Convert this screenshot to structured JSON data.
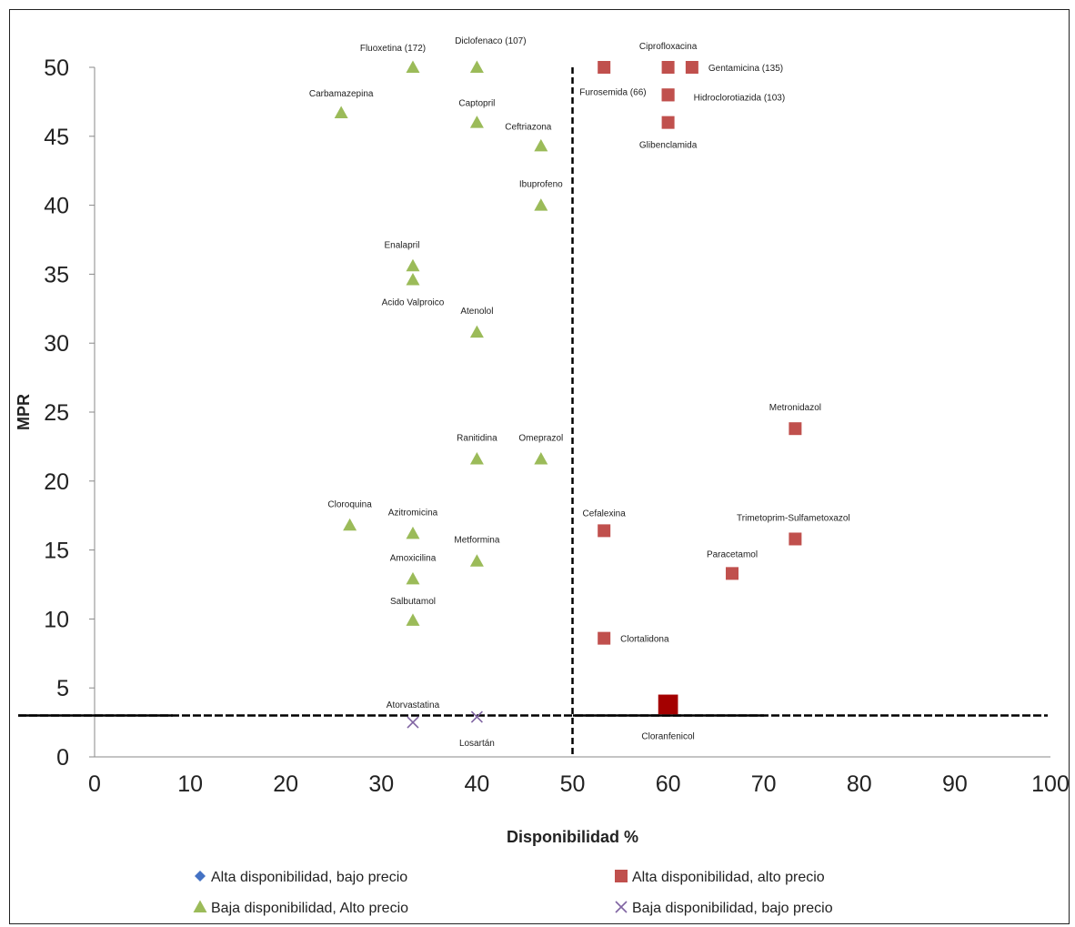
{
  "chart_data": {
    "type": "scatter",
    "title": "",
    "xlabel": "Disponibilidad %",
    "ylabel": "MPR",
    "xlim": [
      0,
      100
    ],
    "ylim": [
      0,
      50
    ],
    "x_ticks": [
      0,
      10,
      20,
      30,
      40,
      50,
      60,
      70,
      80,
      90,
      100
    ],
    "y_ticks": [
      0,
      5,
      10,
      15,
      20,
      25,
      30,
      35,
      40,
      45,
      50
    ],
    "grid": false,
    "reference_lines": {
      "x": 50,
      "y": 3
    },
    "legend_position": "bottom",
    "series": [
      {
        "name": "Alta disponibilidad, bajo precio",
        "marker": "diamond",
        "color": "#4472c4",
        "points": []
      },
      {
        "name": "Alta disponibilidad, alto precio",
        "marker": "square",
        "color": "#c0504d",
        "points": [
          {
            "label": "Ciprofloxacina",
            "x": 60,
            "y": 50
          },
          {
            "label": "",
            "x": 53.3,
            "y": 50
          },
          {
            "label": "Gentamicina (135)",
            "x": 62.5,
            "y": 50
          },
          {
            "label": "Furosemida (66)",
            "x": 60,
            "y": 48
          },
          {
            "label": "Hidroclorotiazida (103)",
            "x": 60,
            "y": 48
          },
          {
            "label": "Glibenclamida",
            "x": 60,
            "y": 46
          },
          {
            "label": "Metronidazol",
            "x": 73.3,
            "y": 23.8
          },
          {
            "label": "Cefalexina",
            "x": 53.3,
            "y": 16.4
          },
          {
            "label": "Trimetoprim-Sulfametoxazol",
            "x": 73.3,
            "y": 15.8
          },
          {
            "label": "Paracetamol",
            "x": 66.7,
            "y": 13.3
          },
          {
            "label": "Clortalidona",
            "x": 53.3,
            "y": 8.6
          },
          {
            "label": "Cloranfenicol",
            "x": 60,
            "y": 3.8,
            "color": "#a40000",
            "size": "large"
          }
        ]
      },
      {
        "name": "Baja disponibilidad, Alto precio",
        "marker": "triangle",
        "color": "#9bbb59",
        "points": [
          {
            "label": "Fluoxetina (172)",
            "x": 33.3,
            "y": 50
          },
          {
            "label": "Diclofenaco (107)",
            "x": 40,
            "y": 50
          },
          {
            "label": "Carbamazepina",
            "x": 25.8,
            "y": 46.7
          },
          {
            "label": "Captopril",
            "x": 40,
            "y": 46
          },
          {
            "label": "Ceftriazona",
            "x": 46.7,
            "y": 44.3
          },
          {
            "label": "Ibuprofeno",
            "x": 46.7,
            "y": 40
          },
          {
            "label": "Enalapril",
            "x": 33.3,
            "y": 35.6
          },
          {
            "label": "Acido Valproico",
            "x": 33.3,
            "y": 34.6
          },
          {
            "label": "Atenolol",
            "x": 40,
            "y": 30.8
          },
          {
            "label": "Ranitidina",
            "x": 40,
            "y": 21.6
          },
          {
            "label": "Omeprazol",
            "x": 46.7,
            "y": 21.6
          },
          {
            "label": "Cloroquina",
            "x": 26.7,
            "y": 16.8
          },
          {
            "label": "Azitromicina",
            "x": 33.3,
            "y": 16.2
          },
          {
            "label": "Metformina",
            "x": 40,
            "y": 14.2
          },
          {
            "label": "Amoxicilina",
            "x": 33.3,
            "y": 12.9
          },
          {
            "label": "Salbutamol",
            "x": 33.3,
            "y": 9.9
          }
        ]
      },
      {
        "name": "Baja disponibilidad, bajo precio",
        "marker": "x",
        "color": "#8064a2",
        "points": [
          {
            "label": "Atorvastatina",
            "x": 33.3,
            "y": 2.5
          },
          {
            "label": "Losartán",
            "x": 40,
            "y": 2.9
          }
        ]
      }
    ]
  }
}
